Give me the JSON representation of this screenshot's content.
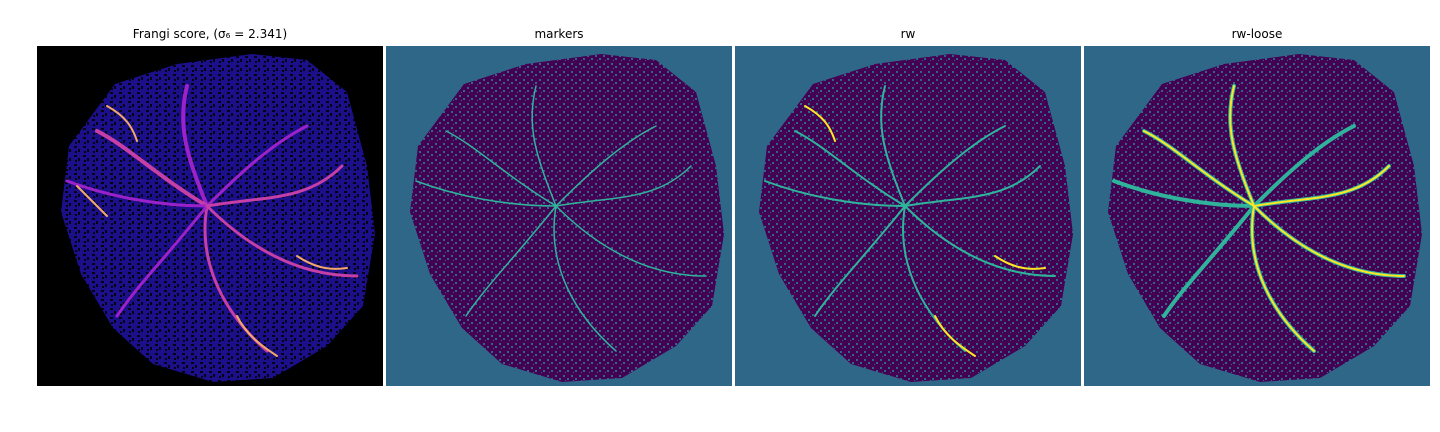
{
  "panels": [
    {
      "title": "Frangi score, (σ₆ = 2.341)",
      "image": "frangi-vesselness-heatmap"
    },
    {
      "title": "markers",
      "image": "marker-labels"
    },
    {
      "title": "rw",
      "image": "random-walker-segmentation"
    },
    {
      "title": "rw-loose",
      "image": "random-walker-loose-segmentation"
    }
  ],
  "colors": {
    "frangi_background": "#000000",
    "frangi_tissue": "#1c0f8a",
    "frangi_vessel_low": "#8a1cbf",
    "frangi_vessel_high": "#f3a86b",
    "viridis_background": "#2f6788",
    "viridis_tissue": "#440154",
    "viridis_marker": "#2fb49b",
    "viridis_vessel": "#fde725"
  }
}
